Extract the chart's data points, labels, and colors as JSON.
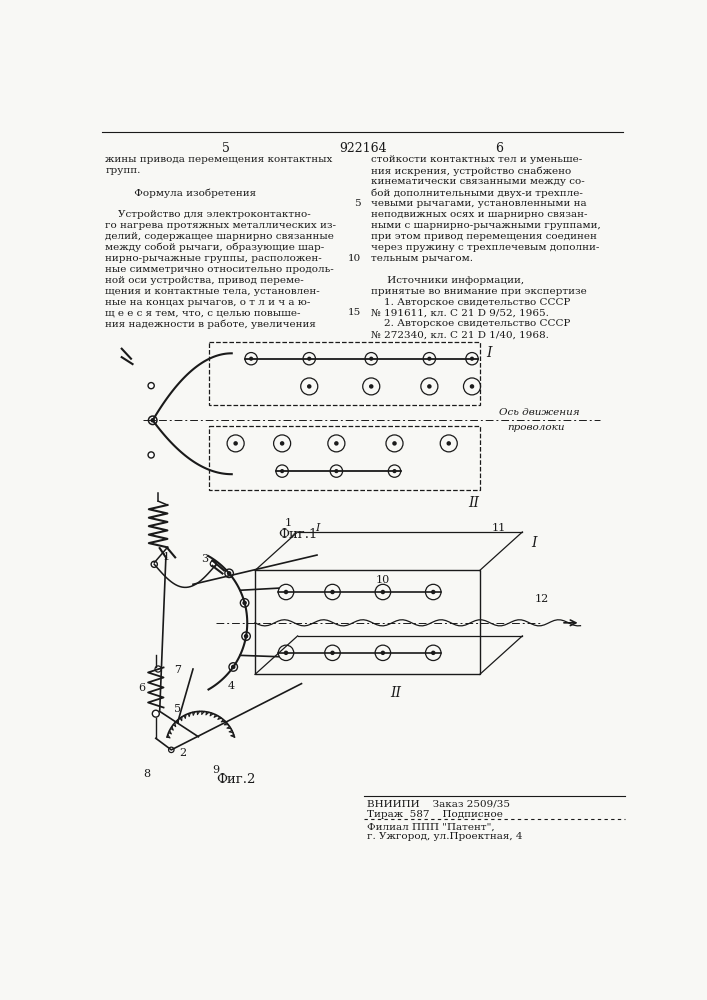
{
  "page_color": "#f8f8f5",
  "header_left_num": "5",
  "header_center_num": "922164",
  "header_right_num": "6",
  "col_left_lines": [
    "жины привода перемещения контактных",
    "групп.",
    "",
    "         Формула изобретения",
    "",
    "    Устройство для электроконтактно-",
    "го нагрева протяжных металлических из-",
    "делий, содержащее шарнирно связанные",
    "между собой рычаги, образующие шар-",
    "нирно-рычажные группы, расположен-",
    "ные симметрично относительно продоль-",
    "ной оси устройства, привод переме-",
    "щения и контактные тела, установлен-",
    "ные на концах рычагов, о т л и ч а ю-",
    "щ е е с я тем, что, с целью повыше-",
    "ния надежности в работе, увеличения"
  ],
  "col_right_lines": [
    "стойкости контактных тел и уменьше-",
    "ния искрения, устройство снабжено",
    "кинематически связанными между со-",
    "бой дополнительными двух-и трехпле-",
    "чевыми рычагами, установленными на",
    "неподвижных осях и шарнирно связан-",
    "ными с шарнирно-рычажными группами,",
    "при этом привод перемещения соединен",
    "через пружину с трехплечевым дополни-",
    "тельным рычагом.",
    "",
    "     Источники информации,",
    "принятые во внимание при экспертизе",
    "    1. Авторское свидетельство СССР",
    "№ 191611, кл. С 21 D 9/52, 1965.",
    "    2. Авторское свидетельство СССР",
    "№ 272340, кл. С 21 D 1/40, 1968."
  ],
  "line_markers": [
    [
      4,
      "5"
    ],
    [
      9,
      "10"
    ],
    [
      14,
      "15"
    ]
  ],
  "fig1_label": "Фиг.1",
  "fig2_label": "Фиг.2",
  "axis_label": "Ось движения",
  "wire_label": "проволоки",
  "footer_vniip": "ВНИИПИ    Заказ 2509/35",
  "footer_tiraz": "Тираж  587    Подписное",
  "footer_filial": "Филиал ППП \"Патент\",",
  "footer_addr": "г. Ужгород, ул.Проектная, 4",
  "lc": "#1a1a1a",
  "tc": "#1a1a1a",
  "fs_body": 7.5,
  "fs_header": 9.0,
  "fs_footer": 7.5,
  "fs_fig_label": 9.5
}
